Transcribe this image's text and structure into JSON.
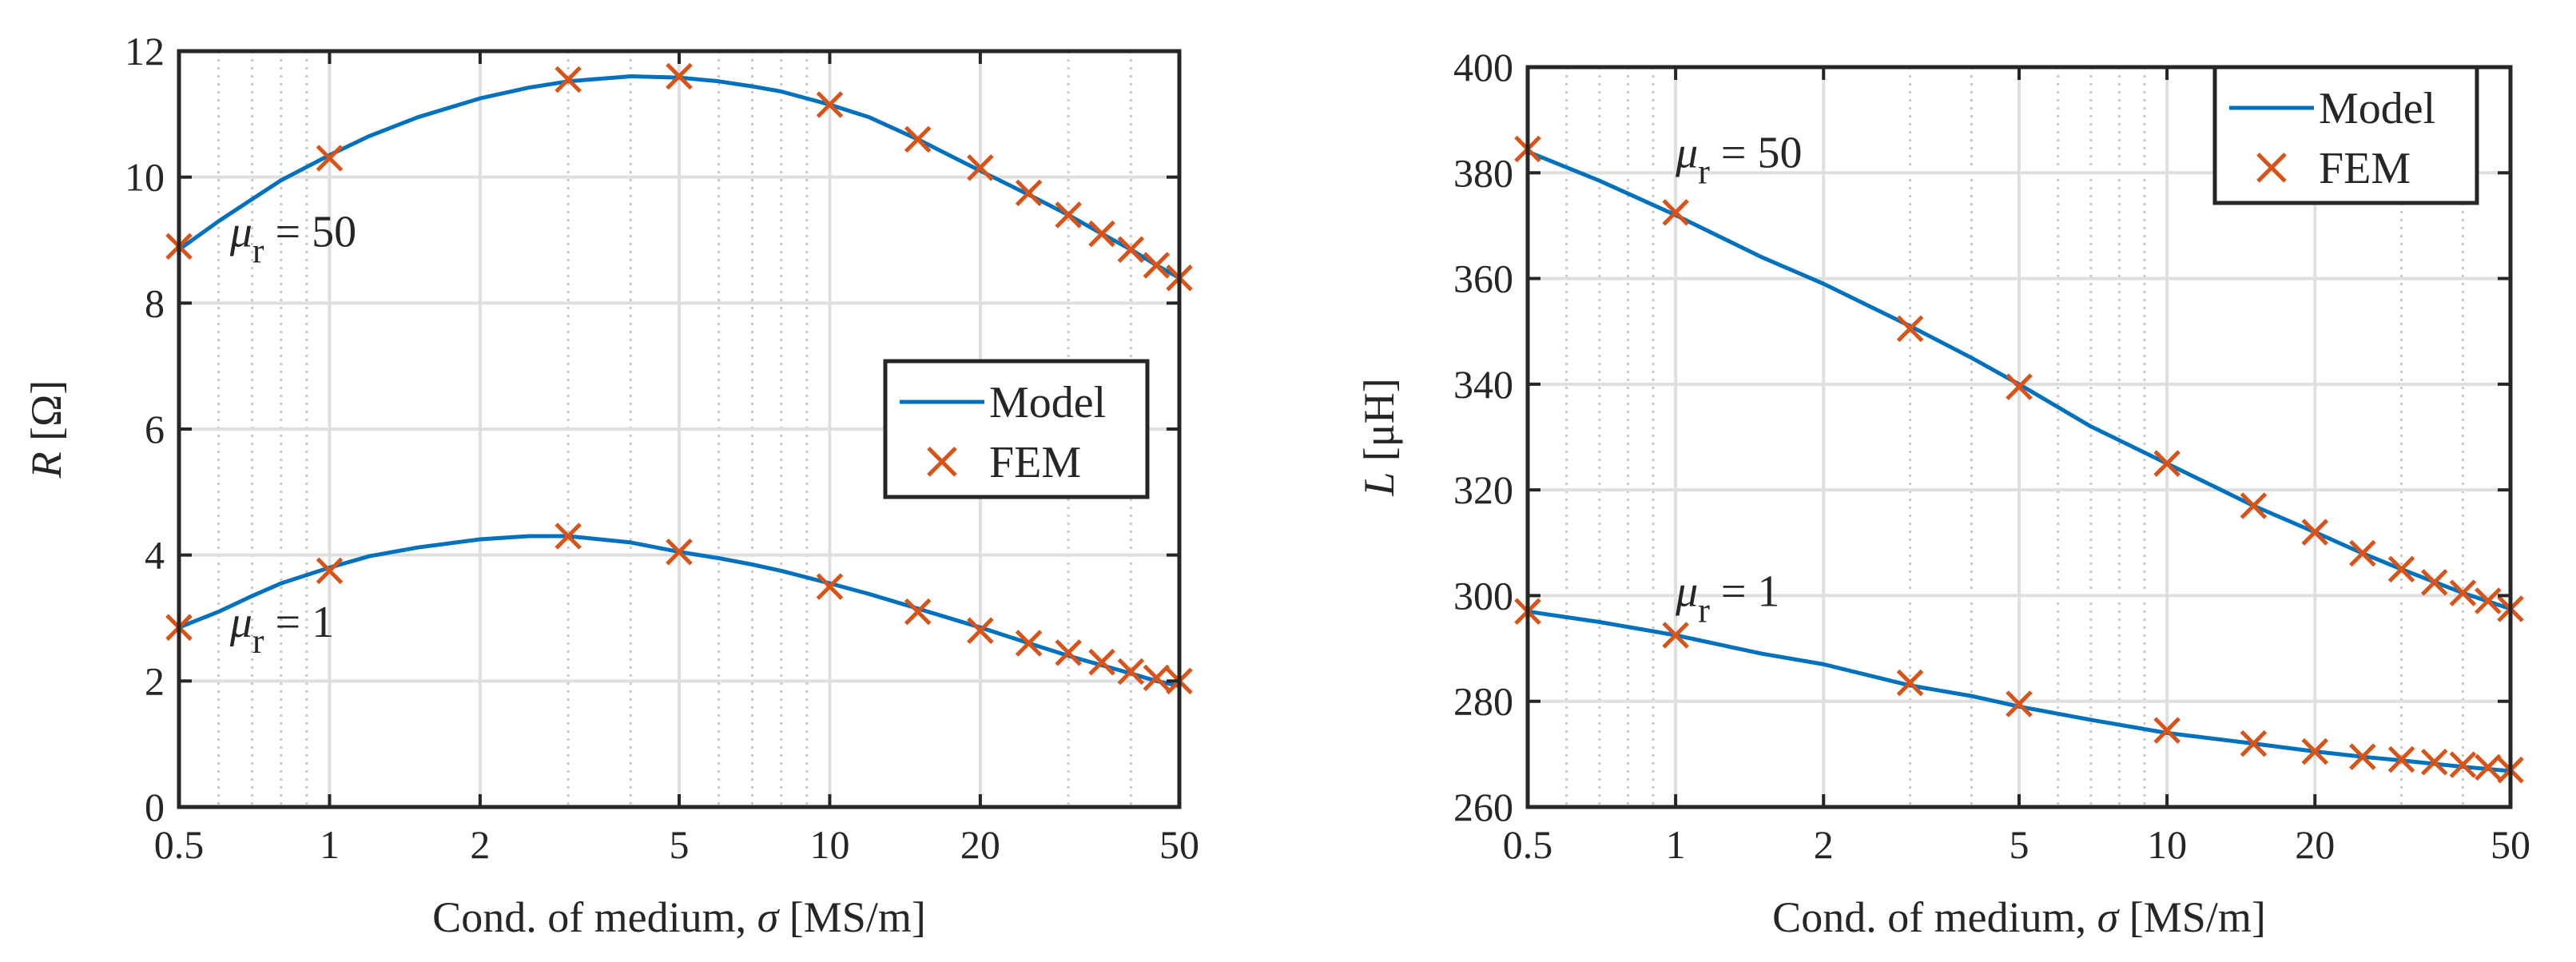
{
  "colors": {
    "model": "#0072BD",
    "fem": "#D95319",
    "grid": "#DFDFDF",
    "axis": "#262626"
  },
  "chart_data": [
    {
      "type": "line",
      "x_scale": "log",
      "title": "",
      "xlabel_prefix": "Cond. of medium, ",
      "xlabel_symbol": "σ",
      "xlabel_suffix": " [MS/m]",
      "ylabel_symbol": "R",
      "ylabel_unit": " [Ω]",
      "xlim": [
        0.5,
        50
      ],
      "ylim": [
        0,
        12
      ],
      "x_ticks": [
        0.5,
        1,
        2,
        5,
        10,
        20,
        50
      ],
      "x_tick_labels": [
        "0.5",
        "1",
        "2",
        "5",
        "10",
        "20",
        "50"
      ],
      "y_ticks": [
        0,
        2,
        4,
        6,
        8,
        10,
        12
      ],
      "y_tick_labels": [
        "0",
        "2",
        "4",
        "6",
        "8",
        "10",
        "12"
      ],
      "grid": true,
      "legend": {
        "position": "center-right",
        "entries": [
          "Model",
          "FEM"
        ]
      },
      "annotations": [
        {
          "base": "μ",
          "sub": "r",
          "text": " = 50",
          "x": 0.8,
          "y": 8.9
        },
        {
          "base": "μ",
          "sub": "r",
          "text": " = 1",
          "x": 0.8,
          "y": 2.7
        }
      ],
      "series": [
        {
          "name": "Model",
          "kind": "line",
          "mu_r": "50",
          "x": [
            0.5,
            0.6,
            0.7,
            0.8,
            1,
            1.2,
            1.5,
            2,
            2.5,
            3,
            4,
            5,
            6,
            7,
            8,
            10,
            12,
            15,
            20,
            25,
            30,
            35,
            40,
            45,
            50
          ],
          "y": [
            8.85,
            9.3,
            9.65,
            9.95,
            10.35,
            10.65,
            10.95,
            11.25,
            11.42,
            11.52,
            11.6,
            11.58,
            11.52,
            11.44,
            11.36,
            11.15,
            10.95,
            10.6,
            10.1,
            9.72,
            9.4,
            9.1,
            8.85,
            8.6,
            8.4
          ]
        },
        {
          "name": "FEM",
          "kind": "marker",
          "mu_r": "50",
          "x": [
            0.5,
            1,
            3,
            5,
            10,
            15,
            20,
            25,
            30,
            35,
            40,
            45,
            50
          ],
          "y": [
            8.9,
            10.3,
            11.55,
            11.6,
            11.15,
            10.6,
            10.15,
            9.75,
            9.4,
            9.1,
            8.85,
            8.6,
            8.4
          ]
        },
        {
          "name": "Model",
          "kind": "line",
          "mu_r": "1",
          "x": [
            0.5,
            0.6,
            0.7,
            0.8,
            1,
            1.2,
            1.5,
            2,
            2.5,
            3,
            4,
            5,
            6,
            7,
            8,
            10,
            12,
            15,
            20,
            25,
            30,
            35,
            40,
            45,
            50
          ],
          "y": [
            2.85,
            3.1,
            3.35,
            3.55,
            3.8,
            3.98,
            4.12,
            4.25,
            4.3,
            4.3,
            4.2,
            4.05,
            3.95,
            3.85,
            3.75,
            3.55,
            3.38,
            3.15,
            2.85,
            2.6,
            2.4,
            2.25,
            2.12,
            2.0,
            1.92
          ]
        },
        {
          "name": "FEM",
          "kind": "marker",
          "mu_r": "1",
          "x": [
            0.5,
            1,
            3,
            5,
            10,
            15,
            20,
            25,
            30,
            35,
            40,
            45,
            50
          ],
          "y": [
            2.85,
            3.75,
            4.3,
            4.05,
            3.5,
            3.1,
            2.8,
            2.6,
            2.45,
            2.3,
            2.15,
            2.05,
            2.0
          ]
        }
      ]
    },
    {
      "type": "line",
      "x_scale": "log",
      "title": "",
      "xlabel_prefix": "Cond. of medium, ",
      "xlabel_symbol": "σ",
      "xlabel_suffix": " [MS/m]",
      "ylabel_symbol": "L",
      "ylabel_unit": " [μH]",
      "xlim": [
        0.5,
        50
      ],
      "ylim": [
        260,
        400
      ],
      "x_ticks": [
        0.5,
        1,
        2,
        5,
        10,
        20,
        50
      ],
      "x_tick_labels": [
        "0.5",
        "1",
        "2",
        "5",
        "10",
        "20",
        "50"
      ],
      "y_ticks": [
        260,
        280,
        300,
        320,
        340,
        360,
        380,
        400
      ],
      "y_tick_labels": [
        "260",
        "280",
        "300",
        "320",
        "340",
        "360",
        "380",
        "400"
      ],
      "grid": true,
      "legend": {
        "position": "top-right",
        "entries": [
          "Model",
          "FEM"
        ]
      },
      "annotations": [
        {
          "base": "μ",
          "sub": "r",
          "text": " = 50",
          "x": 1,
          "y": 381
        },
        {
          "base": "μ",
          "sub": "r",
          "text": " = 1",
          "x": 1,
          "y": 298
        }
      ],
      "series": [
        {
          "name": "Model",
          "kind": "line",
          "mu_r": "50",
          "x": [
            0.5,
            0.7,
            1,
            1.5,
            2,
            3,
            4,
            5,
            7,
            10,
            15,
            20,
            25,
            30,
            40,
            50
          ],
          "y": [
            384,
            378.5,
            372,
            364,
            359,
            351,
            345,
            340,
            332,
            325,
            317,
            312,
            308,
            305,
            300.5,
            297.5
          ]
        },
        {
          "name": "FEM",
          "kind": "marker",
          "mu_r": "50",
          "x": [
            0.5,
            1,
            3,
            5,
            10,
            15,
            20,
            25,
            30,
            35,
            40,
            45,
            50
          ],
          "y": [
            384.5,
            372.5,
            350.5,
            339.5,
            325,
            317,
            312,
            308,
            305,
            302.5,
            300.5,
            299,
            297.5
          ]
        },
        {
          "name": "Model",
          "kind": "line",
          "mu_r": "1",
          "x": [
            0.5,
            0.7,
            1,
            1.5,
            2,
            3,
            4,
            5,
            7,
            10,
            15,
            20,
            25,
            30,
            40,
            50
          ],
          "y": [
            297,
            295,
            292.5,
            289,
            287,
            283,
            281,
            279,
            276.5,
            274,
            272,
            270.5,
            269.5,
            268.8,
            267.6,
            266.8
          ]
        },
        {
          "name": "FEM",
          "kind": "marker",
          "mu_r": "1",
          "x": [
            0.5,
            1,
            3,
            5,
            10,
            15,
            20,
            25,
            30,
            35,
            40,
            45,
            50
          ],
          "y": [
            297,
            292.5,
            283.5,
            279.5,
            274.5,
            272,
            270.5,
            269.5,
            269,
            268.5,
            268,
            267.5,
            267
          ]
        }
      ]
    }
  ]
}
